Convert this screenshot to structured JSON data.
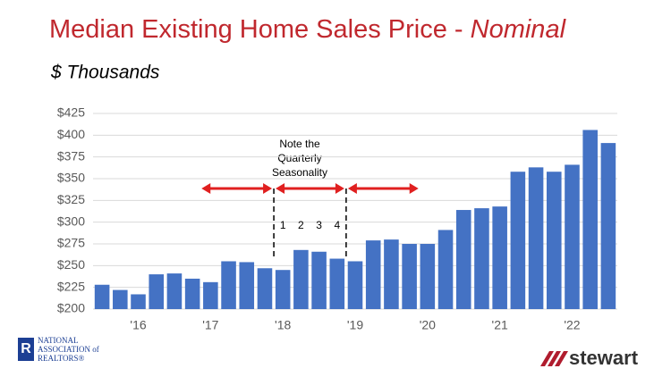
{
  "chart_data": {
    "type": "bar",
    "title": "Median Existing Home Sales Price - ",
    "title_emphasis": "Nominal",
    "subtitle": "$ Thousands",
    "categories": [
      null,
      null,
      "'16",
      null,
      null,
      null,
      "'17",
      null,
      null,
      null,
      "'18",
      null,
      null,
      null,
      "'19",
      null,
      null,
      null,
      "'20",
      null,
      null,
      null,
      "'21",
      null,
      null,
      null,
      "'22",
      null,
      null
    ],
    "values": [
      228,
      222,
      217,
      240,
      241,
      235,
      231,
      255,
      254,
      247,
      245,
      268,
      266,
      258,
      255,
      279,
      280,
      275,
      275,
      291,
      314,
      316,
      318,
      358,
      363,
      358,
      366,
      406,
      391
    ],
    "color": "#4472c4",
    "ylim": [
      200,
      425
    ],
    "yticks": [
      {
        "value": 200,
        "label": "$200"
      },
      {
        "value": 225,
        "label": "$225"
      },
      {
        "value": 250,
        "label": "$250"
      },
      {
        "value": 275,
        "label": "$275"
      },
      {
        "value": 300,
        "label": "$300"
      },
      {
        "value": 325,
        "label": "$325"
      },
      {
        "value": 350,
        "label": "$350"
      },
      {
        "value": 375,
        "label": "$375"
      },
      {
        "value": 400,
        "label": "$400"
      },
      {
        "value": 425,
        "label": "$425"
      }
    ],
    "grid": true,
    "annotation": [
      "Note the",
      "Quarterly",
      "Seasonality"
    ],
    "quarter_labels": [
      "1",
      "2",
      "3",
      "4"
    ]
  },
  "logos": {
    "nar": [
      "NATIONAL",
      "ASSOCIATION of",
      "REALTORS®"
    ],
    "stewart": "stewart"
  }
}
